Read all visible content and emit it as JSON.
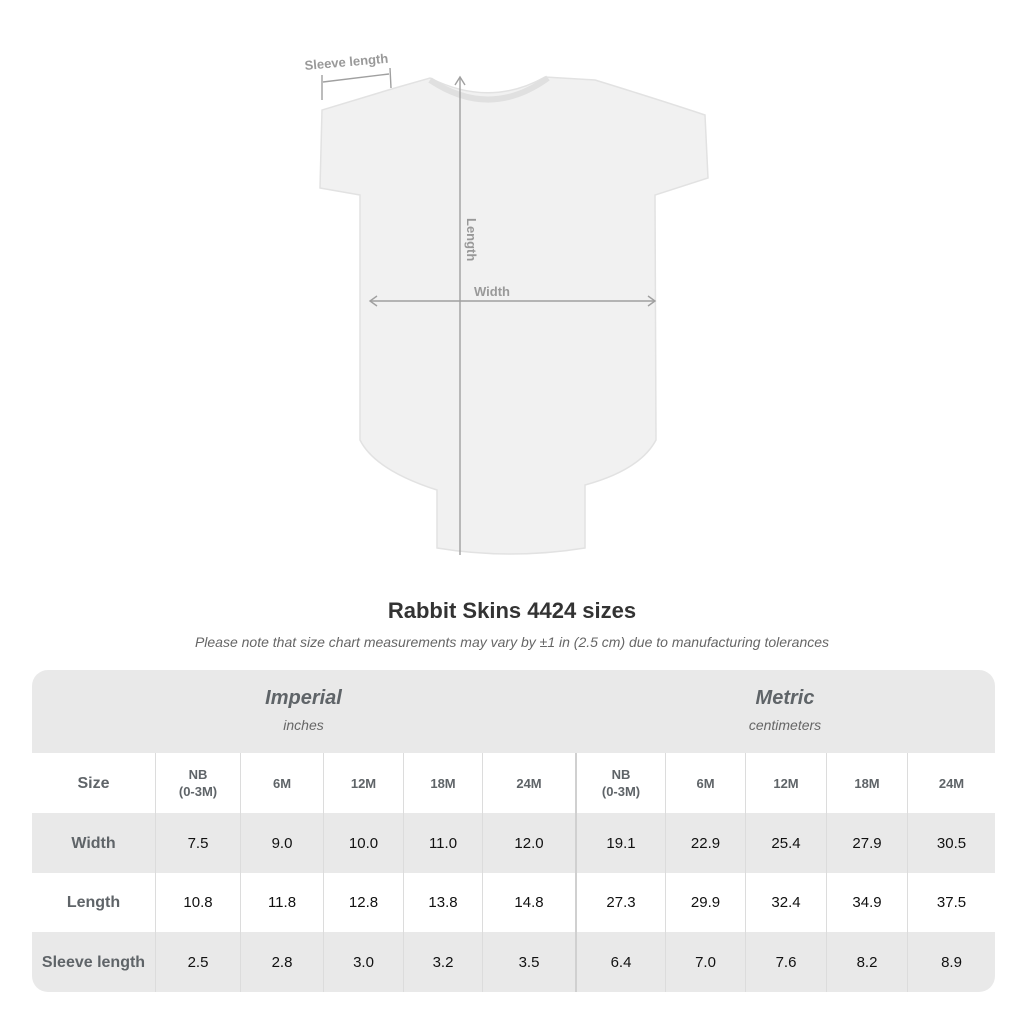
{
  "diagram": {
    "sleeve_label": "Sleeve length",
    "length_label": "Length",
    "width_label": "Width",
    "line_color": "#a0a0a0"
  },
  "title": "Rabbit Skins 4424 sizes",
  "note": "Please note that size chart measurements may vary by ±1 in (2.5 cm) due to manufacturing tolerances",
  "table": {
    "imperial": {
      "label": "Imperial",
      "unit": "inches"
    },
    "metric": {
      "label": "Metric",
      "unit": "centimeters"
    },
    "size_label": "Size",
    "sizes": [
      "NB\n(0-3M)",
      "6M",
      "12M",
      "18M",
      "24M"
    ],
    "rows": [
      {
        "label": "Width",
        "imperial": [
          "7.5",
          "9.0",
          "10.0",
          "11.0",
          "12.0"
        ],
        "metric": [
          "19.1",
          "22.9",
          "25.4",
          "27.9",
          "30.5"
        ]
      },
      {
        "label": "Length",
        "imperial": [
          "10.8",
          "11.8",
          "12.8",
          "13.8",
          "14.8"
        ],
        "metric": [
          "27.3",
          "29.9",
          "32.4",
          "34.9",
          "37.5"
        ]
      },
      {
        "label": "Sleeve length",
        "imperial": [
          "2.5",
          "2.8",
          "3.0",
          "3.2",
          "3.5"
        ],
        "metric": [
          "6.4",
          "7.0",
          "7.6",
          "8.2",
          "8.9"
        ]
      }
    ]
  }
}
